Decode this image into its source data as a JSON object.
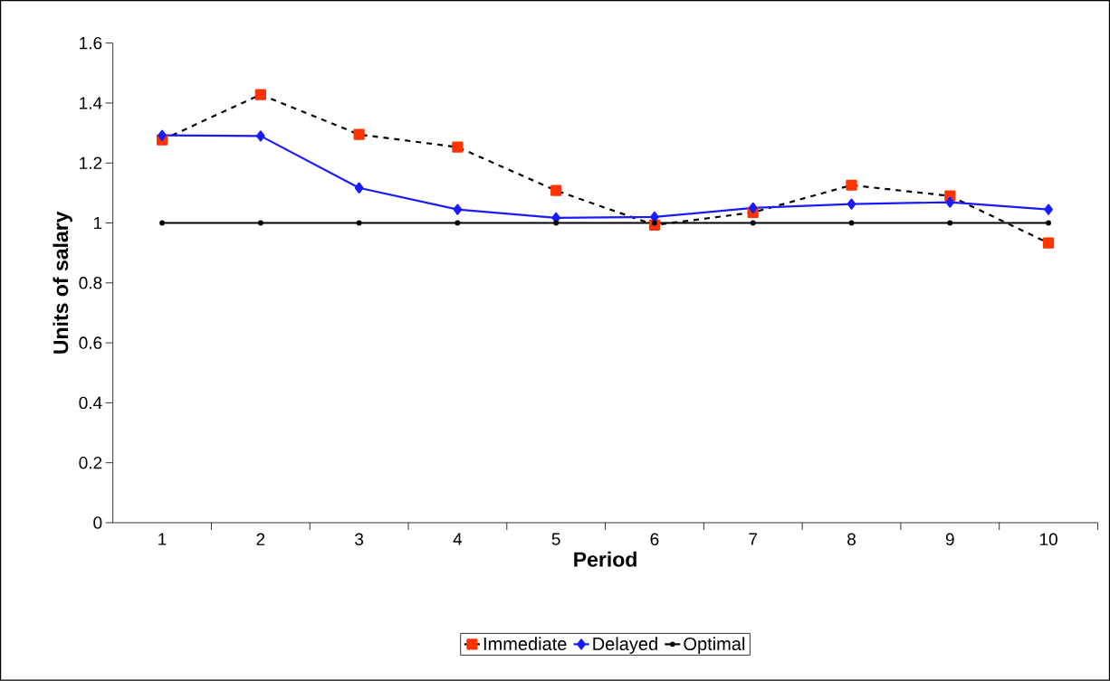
{
  "chart_data": {
    "type": "line",
    "xlabel": "Period",
    "ylabel": "Units of salary",
    "categories": [
      "1",
      "2",
      "3",
      "4",
      "5",
      "6",
      "7",
      "8",
      "9",
      "10"
    ],
    "series": [
      {
        "name": "Immediate",
        "color": "#ff3300",
        "line_style": "dashed",
        "marker": "square",
        "values": [
          1.277,
          1.428,
          1.295,
          1.253,
          1.108,
          0.993,
          1.035,
          1.126,
          1.09,
          0.933
        ]
      },
      {
        "name": "Delayed",
        "color": "#1a1aff",
        "line_style": "solid",
        "marker": "diamond",
        "values": [
          1.292,
          1.29,
          1.117,
          1.045,
          1.017,
          1.02,
          1.05,
          1.063,
          1.069,
          1.045
        ]
      },
      {
        "name": "Optimal",
        "color": "#000000",
        "line_style": "solid",
        "marker": "circle",
        "values": [
          1,
          1,
          1,
          1,
          1,
          1,
          1,
          1,
          1,
          1
        ]
      }
    ],
    "ylim": [
      0,
      1.6
    ],
    "yticks": [
      0,
      0.2,
      0.4,
      0.6,
      0.8,
      1,
      1.2,
      1.4,
      1.6
    ],
    "grid": false,
    "legend": "bottom"
  }
}
